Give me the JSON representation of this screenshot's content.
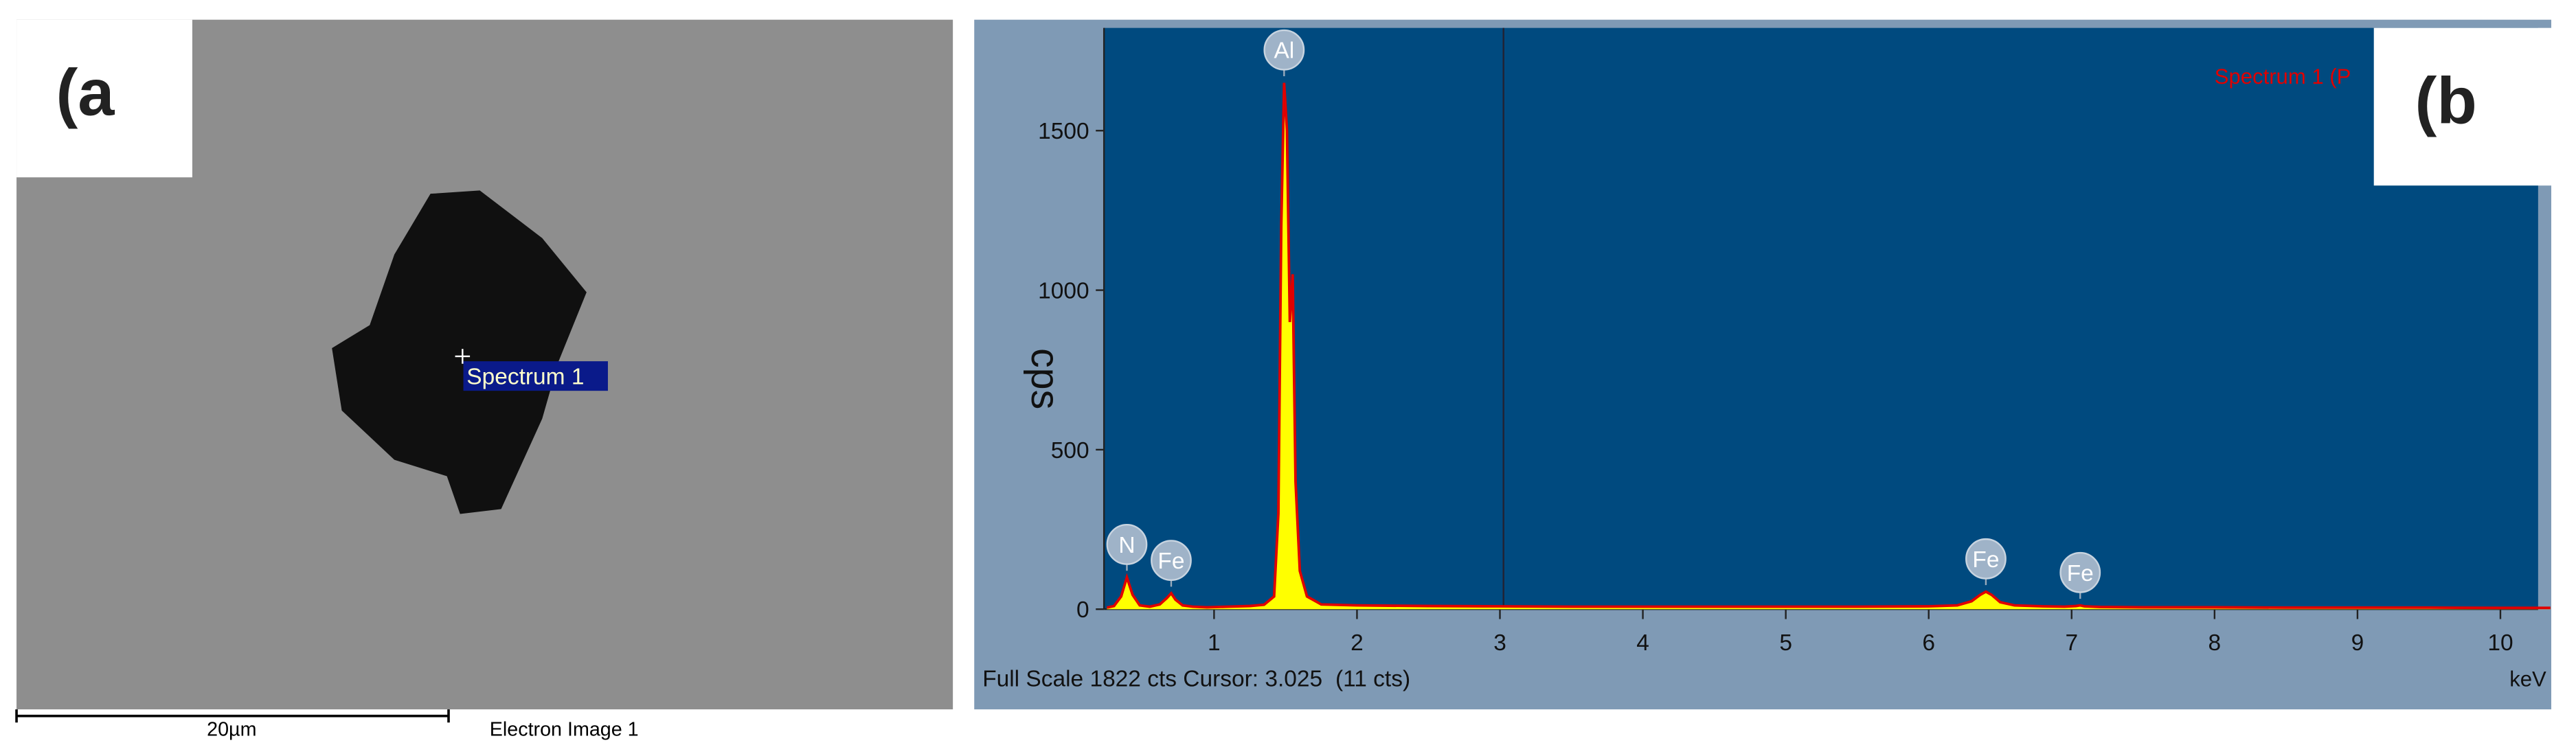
{
  "panel_a": {
    "label": "(a",
    "spectrum_tag": "Spectrum 1",
    "scale_bar": "20µm",
    "caption": "Electron Image 1"
  },
  "chart_data": {
    "type": "line",
    "panel_label": "(b",
    "y_label": "cps",
    "x_unit": "keV",
    "x": [
      0.25,
      0.3,
      0.35,
      0.39,
      0.43,
      0.48,
      0.55,
      0.62,
      0.67,
      0.7,
      0.73,
      0.78,
      0.85,
      0.95,
      1.1,
      1.25,
      1.35,
      1.42,
      1.45,
      1.47,
      1.49,
      1.51,
      1.53,
      1.55,
      1.57,
      1.6,
      1.65,
      1.75,
      2.0,
      2.5,
      3.0,
      3.5,
      4.0,
      4.5,
      5.0,
      5.5,
      6.0,
      6.2,
      6.3,
      6.36,
      6.4,
      6.44,
      6.5,
      6.6,
      6.8,
      6.95,
      7.03,
      7.06,
      7.09,
      7.2,
      7.5,
      8.0,
      8.5,
      9.0,
      9.5,
      10.0,
      10.35
    ],
    "series": [
      {
        "name": "Spectrum 1 (P",
        "color": "#e00000",
        "fill": "#ffff00",
        "values": [
          5,
          10,
          40,
          100,
          45,
          12,
          8,
          15,
          35,
          50,
          30,
          12,
          8,
          6,
          8,
          10,
          14,
          40,
          300,
          1200,
          1650,
          1500,
          900,
          1050,
          400,
          120,
          40,
          15,
          12,
          10,
          9,
          8,
          8,
          8,
          8,
          8,
          9,
          12,
          25,
          45,
          55,
          45,
          22,
          12,
          9,
          8,
          10,
          12,
          9,
          7,
          6,
          6,
          5,
          5,
          5,
          4,
          4
        ]
      }
    ],
    "annotations": [
      {
        "text": "N",
        "x": 0.39
      },
      {
        "text": "Fe",
        "x": 0.7
      },
      {
        "text": "Al",
        "x": 1.49
      },
      {
        "text": "Fe",
        "x": 6.4
      },
      {
        "text": "Fe",
        "x": 7.06
      }
    ],
    "xlim": [
      0.23,
      10.35
    ],
    "ylim": [
      0,
      1822
    ],
    "xticks": [
      1,
      2,
      3,
      4,
      5,
      6,
      7,
      8,
      9,
      10
    ],
    "yticks": [
      0,
      500,
      1000,
      1500
    ],
    "full_scale_label": "Full Scale",
    "full_scale": 1822,
    "cursor_label": "cts Cursor:",
    "cursor": 3.025,
    "cursor_counts": "(11 cts)"
  }
}
